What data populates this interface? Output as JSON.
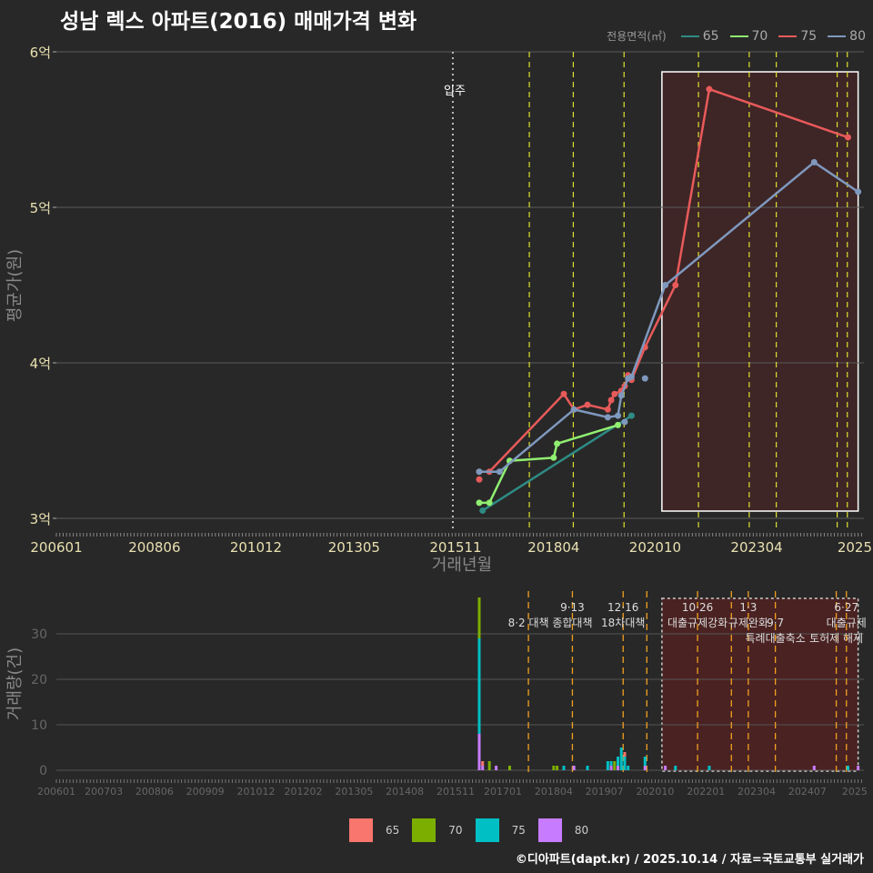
{
  "title": "성남 렉스 아파트(2016) 매매가격 변화",
  "legend_top": {
    "label": "전용면적(㎡)",
    "items": [
      {
        "name": "65",
        "color": "#2e8b84"
      },
      {
        "name": "70",
        "color": "#90ee70"
      },
      {
        "name": "75",
        "color": "#e85a5a"
      },
      {
        "name": "80",
        "color": "#7f98bd"
      }
    ]
  },
  "legend_bottom": {
    "items": [
      {
        "name": "65",
        "color": "#f8766d"
      },
      {
        "name": "70",
        "color": "#7cae00"
      },
      {
        "name": "75",
        "color": "#00bfc4"
      },
      {
        "name": "80",
        "color": "#c77cff"
      }
    ]
  },
  "footer": "©디아파트(dapt.kr) / 2025.10.14 / 자료=국토교통부 실거래가",
  "chart_data": [
    {
      "type": "line",
      "title": "성남 렉스 아파트(2016) 매매가격 변화",
      "xlabel": "거래년월",
      "ylabel": "평균가(원)",
      "ylim": [
        3,
        6
      ],
      "yticks": [
        {
          "v": 3,
          "label": "3억"
        },
        {
          "v": 4,
          "label": "4억"
        },
        {
          "v": 5,
          "label": "5억"
        },
        {
          "v": 6,
          "label": "6억"
        }
      ],
      "xticks": [
        "200601",
        "200806",
        "201012",
        "201305",
        "201511",
        "201804",
        "202010",
        "202304",
        "2025"
      ],
      "series": [
        {
          "name": "65",
          "points": [
            [
              201607,
              3.05
            ],
            [
              202003,
              3.66
            ]
          ]
        },
        {
          "name": "70",
          "points": [
            [
              201606,
              3.1
            ],
            [
              201609,
              3.1
            ],
            [
              201703,
              3.37
            ],
            [
              201804,
              3.39
            ],
            [
              201805,
              3.48
            ],
            [
              201911,
              3.6
            ]
          ]
        },
        {
          "name": "75",
          "points": [
            [
              201606,
              3.3
            ],
            [
              201609,
              3.3
            ],
            [
              201807,
              3.8
            ],
            [
              201810,
              3.7
            ],
            [
              201902,
              3.73
            ],
            [
              201908,
              3.7
            ],
            [
              201909,
              3.76
            ],
            [
              201910,
              3.8
            ],
            [
              201912,
              3.82
            ],
            [
              202001,
              3.85
            ],
            [
              202002,
              3.92
            ],
            [
              202003,
              3.89
            ],
            [
              202007,
              4.1
            ],
            [
              202104,
              4.5
            ],
            [
              202202,
              5.76
            ],
            [
              202507,
              5.45
            ]
          ],
          "extra": [
            [
              201606,
              3.25
            ]
          ]
        },
        {
          "name": "80",
          "points": [
            [
              201606,
              3.3
            ],
            [
              201612,
              3.3
            ],
            [
              201810,
              3.7
            ],
            [
              201908,
              3.65
            ],
            [
              201911,
              3.66
            ],
            [
              201912,
              3.79
            ],
            [
              202002,
              3.9
            ],
            [
              202003,
              3.91
            ],
            [
              202101,
              4.5
            ],
            [
              202409,
              5.29
            ],
            [
              202510,
              5.1
            ]
          ],
          "extra": [
            [
              202001,
              3.62
            ],
            [
              202007,
              3.9
            ]
          ]
        }
      ],
      "annotations": [
        {
          "label": "입주",
          "date": 201511
        }
      ],
      "event_lines": [
        201708,
        201809,
        201912,
        202110,
        202301,
        202309,
        202503,
        202506
      ],
      "highlight": {
        "from": 202012,
        "to": 202510
      }
    },
    {
      "type": "bar",
      "xlabel": "",
      "ylabel": "거래량(건)",
      "ylim": [
        0,
        38
      ],
      "yticks": [
        0,
        10,
        20,
        30
      ],
      "xticks": [
        "200601",
        "200703",
        "200806",
        "200909",
        "201012",
        "201202",
        "201305",
        "201408",
        "201511",
        "201701",
        "201804",
        "201907",
        "202010",
        "202201",
        "202304",
        "202407",
        "2025"
      ],
      "bars": [
        {
          "date": 201606,
          "80": 8,
          "75": 21,
          "70": 9,
          "65": 0
        },
        {
          "date": 201607,
          "65": 1,
          "80": 1
        },
        {
          "date": 201609,
          "70": 2
        },
        {
          "date": 201611,
          "80": 1
        },
        {
          "date": 201703,
          "70": 1
        },
        {
          "date": 201804,
          "70": 1
        },
        {
          "date": 201805,
          "70": 1
        },
        {
          "date": 201807,
          "75": 1
        },
        {
          "date": 201810,
          "80": 1
        },
        {
          "date": 201902,
          "75": 1
        },
        {
          "date": 201908,
          "75": 2
        },
        {
          "date": 201909,
          "75": 1,
          "80": 1
        },
        {
          "date": 201910,
          "70": 2
        },
        {
          "date": 201911,
          "75": 2,
          "80": 1
        },
        {
          "date": 201912,
          "75": 5
        },
        {
          "date": 202001,
          "75": 3,
          "65": 1
        },
        {
          "date": 202002,
          "75": 1
        },
        {
          "date": 202007,
          "75": 2,
          "80": 1
        },
        {
          "date": 202101,
          "80": 1
        },
        {
          "date": 202104,
          "75": 1
        },
        {
          "date": 202202,
          "75": 1
        },
        {
          "date": 202409,
          "80": 1
        },
        {
          "date": 202507,
          "75": 1
        },
        {
          "date": 202510,
          "80": 1
        }
      ],
      "events": [
        {
          "date": 201708,
          "label": "8·2 대책",
          "row": 1
        },
        {
          "date": 201809,
          "label": "9·13",
          "row": 0
        },
        {
          "date": 201809,
          "label": "종합대책",
          "row": 1
        },
        {
          "date": 201912,
          "label": "12·16",
          "row": 0
        },
        {
          "date": 201912,
          "label": "18차대책",
          "row": 1
        },
        {
          "date": 202007,
          "label": "",
          "row": 0
        },
        {
          "date": 202110,
          "label": "10·26",
          "row": 0
        },
        {
          "date": 202110,
          "label": "대출규제강화",
          "row": 1
        },
        {
          "date": 202208,
          "label": "",
          "row": 0
        },
        {
          "date": 202301,
          "label": "1·3",
          "row": 0
        },
        {
          "date": 202301,
          "label": "규제완화",
          "row": 1
        },
        {
          "date": 202309,
          "label": "9·7",
          "row": 1
        },
        {
          "date": 202309,
          "label": "특례대출축소",
          "row": 2
        },
        {
          "date": 202503,
          "label": "토허제 해제",
          "row": 2
        },
        {
          "date": 202506,
          "label": "6·27",
          "row": 0
        },
        {
          "date": 202506,
          "label": "대출규제",
          "row": 1
        }
      ],
      "highlight": {
        "from": 202012,
        "to": 202510
      }
    }
  ]
}
